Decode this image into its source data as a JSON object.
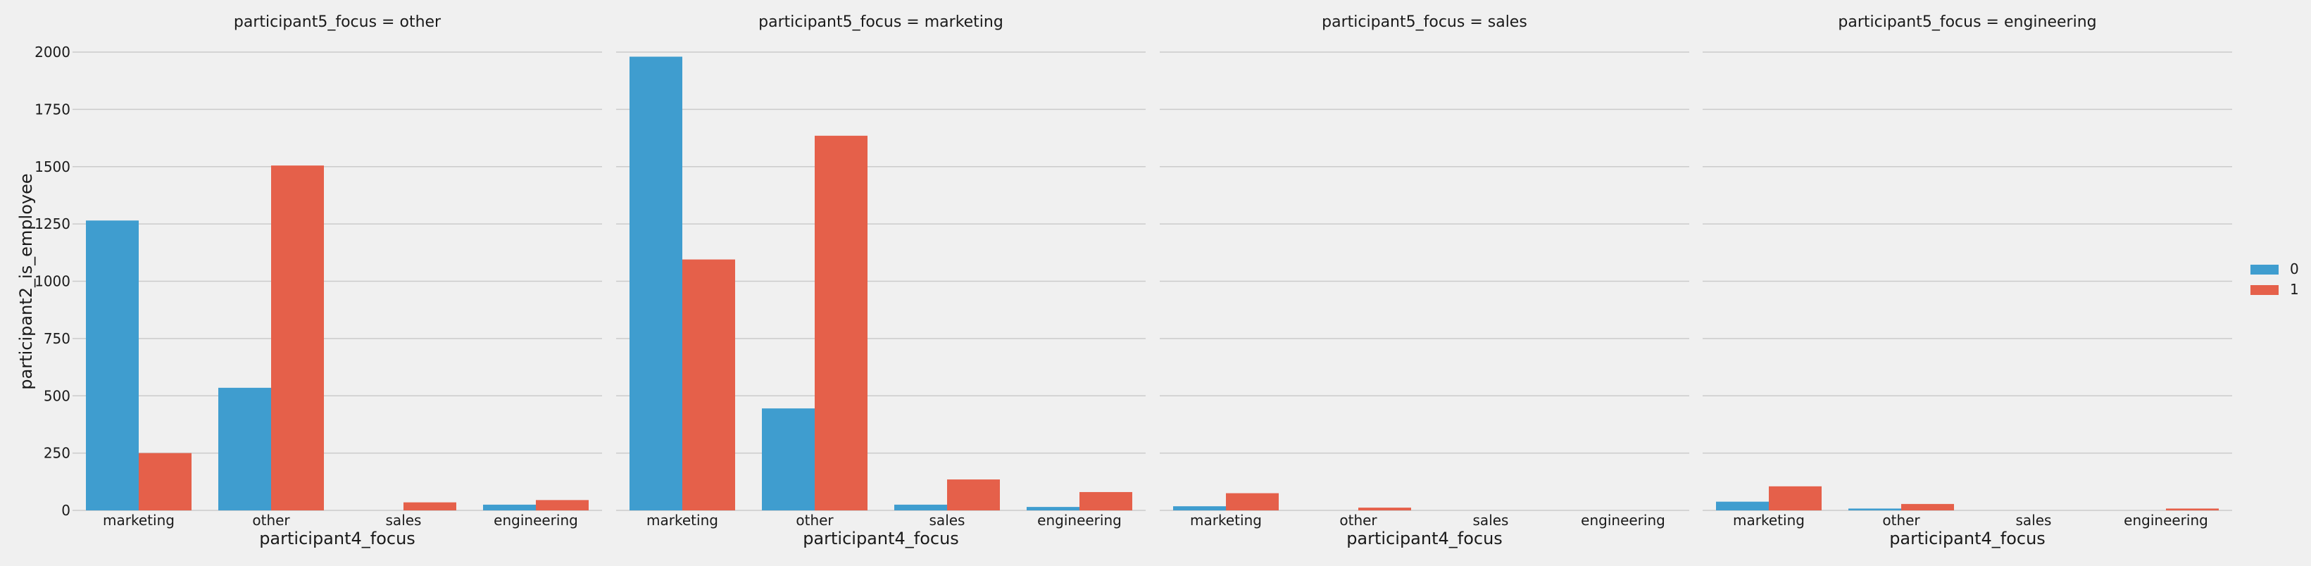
{
  "chart_data": {
    "type": "bar",
    "ylabel": "participant2_is_employee",
    "xlabel": "participant4_focus",
    "ylim": [
      0,
      2000
    ],
    "yticks": [
      0,
      250,
      500,
      750,
      1000,
      1250,
      1500,
      1750,
      2000
    ],
    "grid": true,
    "legend_position": "right",
    "categories": [
      "marketing",
      "other",
      "sales",
      "engineering"
    ],
    "series_colors": [
      "#3f9dcf",
      "#e5604a"
    ],
    "legend": [
      {
        "label": "0",
        "color": "#3f9dcf"
      },
      {
        "label": "1",
        "color": "#e5604a"
      }
    ],
    "panels": [
      {
        "title": "participant5_focus = other",
        "series": [
          {
            "name": "0",
            "values": [
              1265,
              535,
              0,
              25
            ]
          },
          {
            "name": "1",
            "values": [
              250,
              1505,
              35,
              45
            ]
          }
        ]
      },
      {
        "title": "participant5_focus = marketing",
        "series": [
          {
            "name": "0",
            "values": [
              1980,
              445,
              25,
              15
            ]
          },
          {
            "name": "1",
            "values": [
              1095,
              1635,
              135,
              80
            ]
          }
        ]
      },
      {
        "title": "participant5_focus = sales",
        "series": [
          {
            "name": "0",
            "values": [
              18,
              0,
              0,
              0
            ]
          },
          {
            "name": "1",
            "values": [
              75,
              12,
              0,
              0
            ]
          }
        ]
      },
      {
        "title": "participant5_focus = engineering",
        "series": [
          {
            "name": "0",
            "values": [
              38,
              8,
              0,
              0
            ]
          },
          {
            "name": "1",
            "values": [
              105,
              28,
              0,
              8
            ]
          }
        ]
      }
    ]
  }
}
